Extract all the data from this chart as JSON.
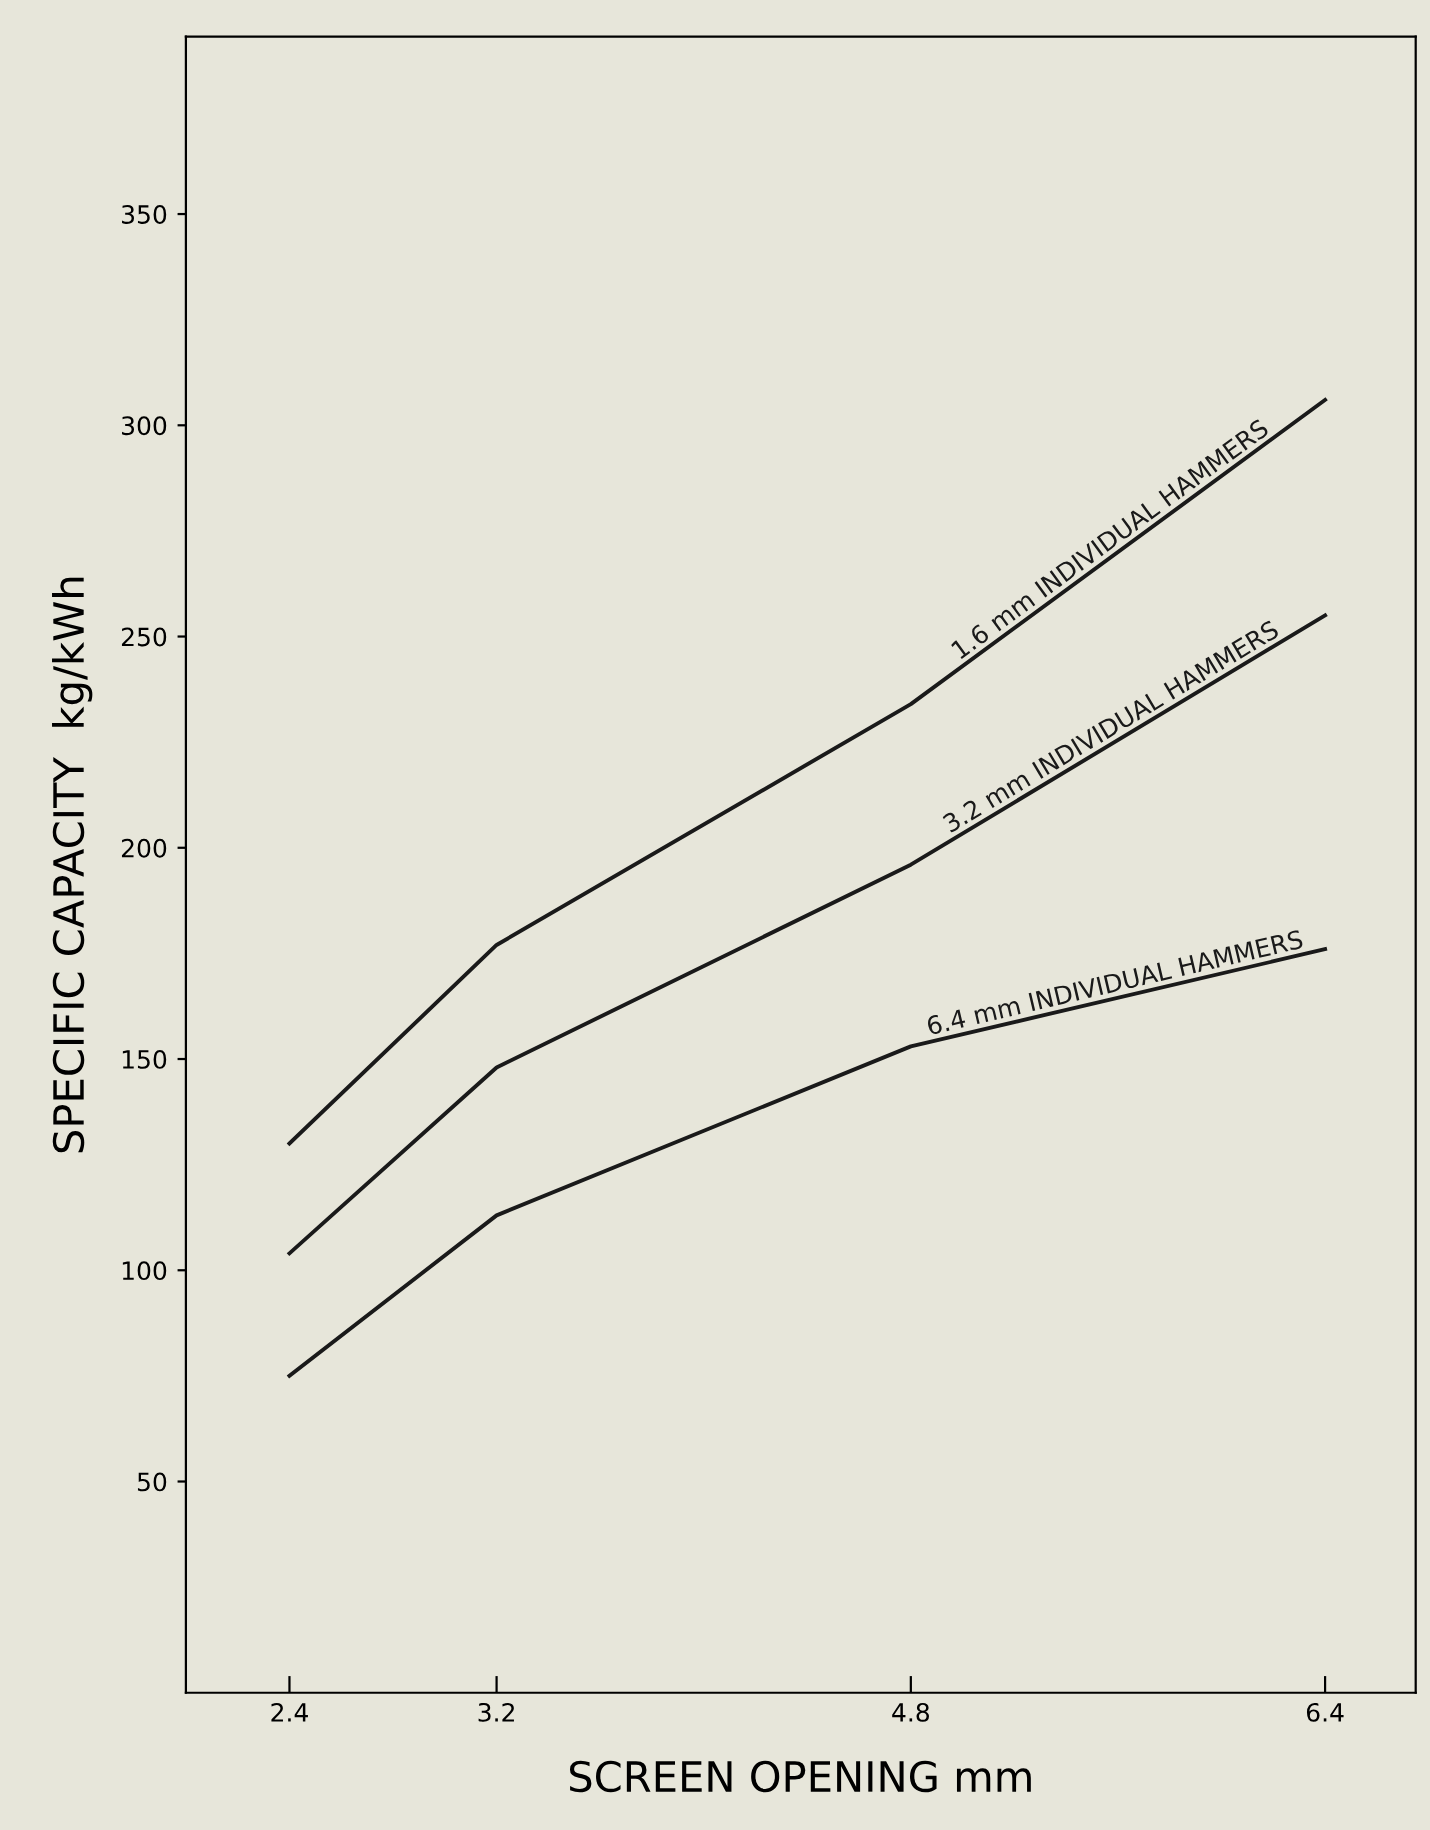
{
  "chart_data": {
    "type": "line",
    "xlabel": "SCREEN OPENING mm",
    "ylabel": "SPECIFIC CAPACITY  kg/kWh",
    "x": [
      2.4,
      3.2,
      4.8,
      6.4
    ],
    "series": [
      {
        "name": "1.6 mm INDIVIDUAL HAMMERS",
        "color": "#1a1a1a",
        "values": [
          130,
          177,
          234,
          306
        ]
      },
      {
        "name": "3.2 mm INDIVIDUAL HAMMERS",
        "color": "#1a1a1a",
        "values": [
          104,
          148,
          196,
          255
        ]
      },
      {
        "name": "6.4 mm INDIVIDUAL HAMMERS",
        "color": "#1a1a1a",
        "values": [
          75,
          113,
          153,
          176
        ]
      }
    ],
    "xlim": [
      2.0,
      6.75
    ],
    "xticks": [
      2.4,
      3.2,
      4.8,
      6.4
    ],
    "ylim": [
      0,
      392
    ],
    "yticks": [
      50,
      100,
      150,
      200,
      250,
      300,
      350
    ],
    "grid": false,
    "legend": false,
    "marker": "none",
    "line_style": "solid"
  }
}
